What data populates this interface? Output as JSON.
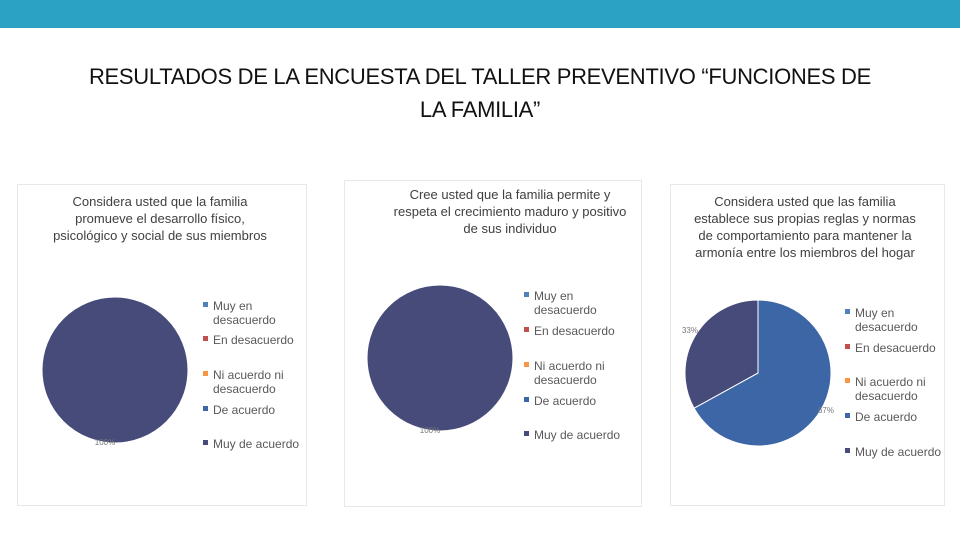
{
  "title": "RESULTADOS DE LA ENCUESTA DEL TALLER PREVENTIVO “FUNCIONES DE LA FAMILIA”",
  "chart_data": [
    {
      "type": "pie",
      "title": "Considera usted que la familia promueve el desarrollo físico, psicológico y social de sus miembros",
      "categories": [
        "Muy en desacuerdo",
        "En desacuerdo",
        "Ni acuerdo ni desacuerdo",
        "De acuerdo",
        "Muy de acuerdo"
      ],
      "values": [
        0,
        0,
        0,
        0,
        100
      ],
      "value_labels": [
        null,
        null,
        null,
        null,
        "100%"
      ],
      "colors": [
        "#4f81bd",
        "#c0504d",
        "#f79646",
        "#3d66a6",
        "#464b7a"
      ],
      "legend": "right"
    },
    {
      "type": "pie",
      "title": "Cree usted que la familia permite y respeta el crecimiento maduro y positivo de sus individuo",
      "categories": [
        "Muy en desacuerdo",
        "En desacuerdo",
        "Ni acuerdo ni desacuerdo",
        "De acuerdo",
        "Muy de acuerdo"
      ],
      "values": [
        0,
        0,
        0,
        0,
        100
      ],
      "value_labels": [
        null,
        null,
        null,
        null,
        "100%"
      ],
      "colors": [
        "#4f81bd",
        "#c0504d",
        "#f79646",
        "#3d66a6",
        "#464b7a"
      ],
      "legend": "right"
    },
    {
      "type": "pie",
      "title": "Considera usted que las familia establece sus propias reglas y normas de comportamiento para mantener la armonía entre los miembros del hogar",
      "categories": [
        "Muy en desacuerdo",
        "En desacuerdo",
        "Ni acuerdo ni desacuerdo",
        "De acuerdo",
        "Muy de acuerdo"
      ],
      "values": [
        0,
        0,
        0,
        67,
        33
      ],
      "value_labels": [
        null,
        null,
        null,
        "67%",
        "33%"
      ],
      "colors": [
        "#4f81bd",
        "#c0504d",
        "#f79646",
        "#3d66a6",
        "#464b7a"
      ],
      "legend": "right"
    }
  ]
}
